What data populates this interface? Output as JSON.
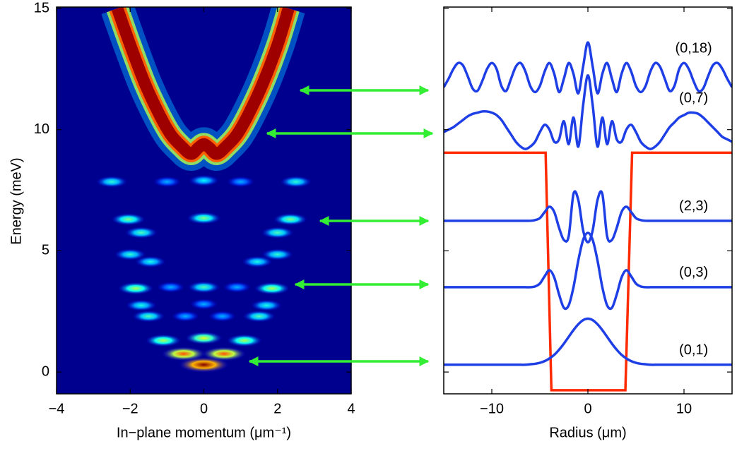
{
  "chart_data": [
    {
      "type": "heatmap",
      "colormap": "jet",
      "background": "#00008f",
      "xlabel": "In−plane momentum (μm⁻¹)",
      "ylabel": "Energy (meV)",
      "xlim": [
        -4,
        4
      ],
      "ylim": [
        -0.9,
        15
      ],
      "xticks": [
        {
          "value": -4,
          "label": "−4"
        },
        {
          "value": -2,
          "label": "−2"
        },
        0,
        2,
        4
      ],
      "yticks": [
        0,
        5,
        10,
        15
      ],
      "x": [
        0,
        -0.55,
        0.55,
        -1.1,
        0,
        1.1,
        -1.5,
        -0.5,
        0.5,
        1.5,
        -1.7,
        0,
        1.7,
        -1.85,
        -0.9,
        0,
        0.9,
        1.85,
        -1.45,
        1.45,
        -2.0,
        2.0,
        -1.7,
        2.0,
        -2.05,
        0,
        2.35,
        -2.5,
        -1.0,
        0,
        1.0,
        2.5
      ],
      "y": [
        0.3,
        0.75,
        0.75,
        1.3,
        1.4,
        1.3,
        2.3,
        2.3,
        2.3,
        2.3,
        2.75,
        2.8,
        2.75,
        3.45,
        3.5,
        3.5,
        3.5,
        3.45,
        4.55,
        4.55,
        4.85,
        4.85,
        5.75,
        5.75,
        6.3,
        6.35,
        6.3,
        7.85,
        7.85,
        7.9,
        7.85,
        7.85
      ],
      "z": [
        1.0,
        0.8,
        0.8,
        0.55,
        0.6,
        0.55,
        0.45,
        0.3,
        0.3,
        0.45,
        0.4,
        0.3,
        0.4,
        0.55,
        0.3,
        0.45,
        0.3,
        0.55,
        0.4,
        0.4,
        0.42,
        0.42,
        0.45,
        0.45,
        0.5,
        0.5,
        0.5,
        0.42,
        0.3,
        0.38,
        0.3,
        0.42
      ],
      "ridge": {
        "x": [
          -2.35,
          -2.0,
          -1.6,
          -1.2,
          -0.9,
          -0.6,
          -0.35,
          -0.15,
          0,
          0.15,
          0.35,
          0.6,
          0.9,
          1.2,
          1.6,
          2.0,
          2.3
        ],
        "y": [
          15,
          13.5,
          11.9,
          10.6,
          9.8,
          9.3,
          9.0,
          9.25,
          9.4,
          9.25,
          9.0,
          9.3,
          9.8,
          10.6,
          11.9,
          13.5,
          15
        ]
      }
    },
    {
      "type": "line",
      "xlabel": "Radius (μm)",
      "xlim": [
        -15,
        15
      ],
      "ylim": [
        -0.9,
        15
      ],
      "xticks": [
        {
          "value": -10,
          "label": "−10"
        },
        0,
        10
      ],
      "yticks": [
        0,
        5,
        10,
        15
      ],
      "show_ytick_labels": false,
      "x": [
        -15,
        -14.5,
        -14,
        -13.5,
        -13,
        -12.5,
        -12,
        -11.5,
        -11,
        -10.5,
        -10,
        -9.5,
        -9,
        -8.5,
        -8,
        -7.5,
        -7,
        -6.5,
        -6,
        -5.5,
        -5,
        -4.5,
        -4,
        -3.5,
        -3,
        -2.5,
        -2,
        -1.5,
        -1,
        -0.5,
        0,
        0.5,
        1,
        1.5,
        2,
        2.5,
        3,
        3.5,
        4,
        4.5,
        5,
        5.5,
        6,
        6.5,
        7,
        7.5,
        8,
        8.5,
        9,
        9.5,
        10,
        10.5,
        11,
        11.5,
        12,
        12.5,
        13,
        13.5,
        14,
        14.5,
        15
      ],
      "series": [
        {
          "name": "(0,18)",
          "color": "#1f3fe6",
          "values": [
            11.75,
            12.1,
            12.5,
            12.75,
            12.65,
            12.2,
            11.7,
            11.6,
            12.0,
            12.5,
            12.75,
            12.5,
            11.8,
            11.6,
            12.1,
            12.6,
            12.75,
            12.4,
            11.8,
            11.55,
            11.8,
            12.4,
            12.75,
            12.3,
            11.55,
            12.1,
            12.75,
            12.3,
            11.5,
            12.6,
            13.6,
            12.6,
            11.5,
            12.3,
            12.75,
            12.1,
            11.55,
            12.3,
            12.75,
            12.4,
            11.8,
            11.55,
            11.8,
            12.4,
            12.75,
            12.6,
            12.1,
            11.6,
            11.8,
            12.5,
            12.75,
            12.5,
            12.0,
            11.6,
            11.7,
            12.2,
            12.65,
            12.75,
            12.5,
            12.1,
            11.75
          ]
        },
        {
          "name": "(0,7)",
          "color": "#1f3fe6",
          "values": [
            9.9,
            10.0,
            10.1,
            10.25,
            10.4,
            10.55,
            10.65,
            10.7,
            10.75,
            10.75,
            10.7,
            10.6,
            10.4,
            10.1,
            9.8,
            9.5,
            9.3,
            9.2,
            9.3,
            9.5,
            9.9,
            10.2,
            10.0,
            9.5,
            9.6,
            10.35,
            9.4,
            10.5,
            9.3,
            11.0,
            12.24,
            11.0,
            9.3,
            10.5,
            9.4,
            10.35,
            9.6,
            9.5,
            10.0,
            10.2,
            9.9,
            9.5,
            9.3,
            9.2,
            9.3,
            9.5,
            9.8,
            10.1,
            10.3,
            10.5,
            10.6,
            10.7,
            10.7,
            10.65,
            10.5,
            10.3,
            10.1,
            9.9,
            9.7,
            9.6,
            9.5
          ]
        },
        {
          "name": "(2,3)",
          "color": "#1f3fe6",
          "values": [
            6.24,
            6.24,
            6.24,
            6.24,
            6.24,
            6.24,
            6.24,
            6.24,
            6.24,
            6.24,
            6.24,
            6.24,
            6.24,
            6.24,
            6.24,
            6.24,
            6.24,
            6.24,
            6.24,
            6.27,
            6.35,
            6.6,
            6.82,
            6.6,
            5.95,
            5.45,
            5.6,
            7.35,
            7.1,
            5.85,
            5.35,
            5.85,
            7.1,
            7.35,
            5.6,
            5.45,
            5.95,
            6.6,
            6.82,
            6.6,
            6.35,
            6.27,
            6.24,
            6.24,
            6.24,
            6.24,
            6.24,
            6.24,
            6.24,
            6.24,
            6.24,
            6.24,
            6.24,
            6.24,
            6.24,
            6.24,
            6.24,
            6.24,
            6.24,
            6.24,
            6.24
          ]
        },
        {
          "name": "(0,3)",
          "color": "#1f3fe6",
          "values": [
            3.5,
            3.5,
            3.5,
            3.5,
            3.5,
            3.5,
            3.5,
            3.5,
            3.5,
            3.5,
            3.5,
            3.5,
            3.5,
            3.5,
            3.5,
            3.5,
            3.5,
            3.5,
            3.5,
            3.53,
            3.65,
            3.95,
            4.2,
            3.9,
            3.2,
            2.65,
            2.75,
            3.5,
            4.6,
            5.45,
            5.74,
            5.45,
            4.6,
            3.5,
            2.75,
            2.65,
            3.2,
            3.9,
            4.2,
            3.95,
            3.65,
            3.53,
            3.5,
            3.5,
            3.5,
            3.5,
            3.5,
            3.5,
            3.5,
            3.5,
            3.5,
            3.5,
            3.5,
            3.5,
            3.5,
            3.5,
            3.5,
            3.5,
            3.5,
            3.5,
            3.5
          ]
        },
        {
          "name": "(0,1)",
          "color": "#1f3fe6",
          "values": [
            0.3,
            0.3,
            0.3,
            0.3,
            0.3,
            0.3,
            0.3,
            0.3,
            0.3,
            0.3,
            0.3,
            0.3,
            0.3,
            0.3,
            0.3,
            0.3,
            0.3,
            0.3,
            0.32,
            0.34,
            0.38,
            0.45,
            0.56,
            0.71,
            0.92,
            1.17,
            1.45,
            1.73,
            1.97,
            2.14,
            2.2,
            2.14,
            1.97,
            1.73,
            1.45,
            1.17,
            0.92,
            0.71,
            0.56,
            0.45,
            0.38,
            0.34,
            0.32,
            0.3,
            0.3,
            0.3,
            0.3,
            0.3,
            0.3,
            0.3,
            0.3,
            0.3,
            0.3,
            0.3,
            0.3,
            0.3,
            0.3,
            0.3,
            0.3,
            0.3,
            0.3
          ]
        }
      ],
      "potential": {
        "color": "#ff2a00",
        "x": [
          -15,
          -4.4,
          -3.8,
          3.9,
          4.6,
          15
        ],
        "values": [
          9.05,
          9.05,
          -0.75,
          -0.75,
          9.05,
          9.05
        ]
      }
    }
  ]
}
